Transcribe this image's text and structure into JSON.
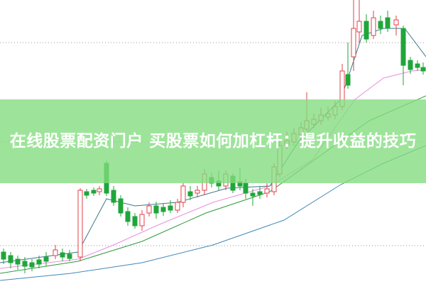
{
  "article": {
    "title": "在线股票配资门户 买股票如何加杠杆：提升收益的技巧"
  },
  "colors": {
    "banner": "#8fdc8a",
    "up_candle": "#e0424a",
    "down_candle": "#1fa63a",
    "ma_pink": "#e690e0",
    "ma_green": "#2e9a3e",
    "ma_blue": "#3f88b8"
  }
}
